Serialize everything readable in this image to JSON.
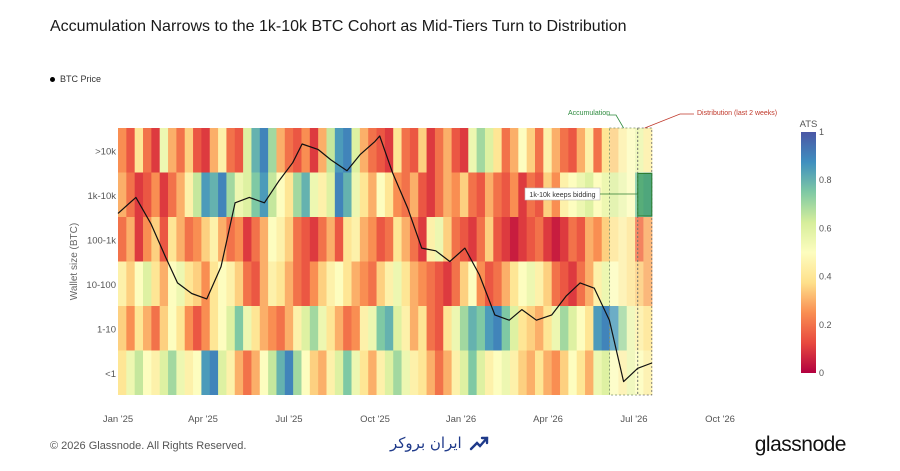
{
  "chart_data": {
    "type": "heatmap",
    "title": "Accumulation Narrows to the 1k-10k BTC Cohort as Mid-Tiers Turn to Distribution",
    "legend": {
      "items": [
        "BTC Price"
      ],
      "placement": "top-left"
    },
    "ylabel": "Wallet size (BTC)",
    "rows": [
      ">10k",
      "1k-10k",
      "100-1k",
      "10-100",
      "1-10",
      "<1"
    ],
    "x_ticks": [
      "Jan '25",
      "Apr '25",
      "Jul '25",
      "Oct '25",
      "Jan '26",
      "Apr '26",
      "Jul '26",
      "Oct '26"
    ],
    "x_start": "2025-01-01",
    "x_end": "2026-07-20",
    "colorbar": {
      "title": "ATS",
      "ticks": [
        "0",
        "0.2",
        "0.4",
        "0.6",
        "0.8",
        "1"
      ],
      "range": [
        0,
        1
      ],
      "colors": [
        "#b2003f",
        "#e8493f",
        "#f98e52",
        "#fee08b",
        "#fdfdbf",
        "#d6ee9b",
        "#7fc9a4",
        "#3f8fbf",
        "#4a56a5"
      ]
    },
    "ats": {
      ">10k": [
        0.25,
        0.15,
        0.4,
        0.2,
        0.1,
        0.55,
        0.3,
        0.2,
        0.35,
        0.15,
        0.1,
        0.3,
        0.45,
        0.2,
        0.15,
        0.6,
        0.8,
        0.9,
        0.7,
        0.3,
        0.2,
        0.15,
        0.25,
        0.1,
        0.3,
        0.65,
        0.85,
        0.9,
        0.6,
        0.3,
        0.2,
        0.15,
        0.1,
        0.4,
        0.2,
        0.15,
        0.35,
        0.1,
        0.2,
        0.3,
        0.15,
        0.1,
        0.55,
        0.7,
        0.6,
        0.4,
        0.2,
        0.3,
        0.5,
        0.35,
        0.2,
        0.45,
        0.3,
        0.2,
        0.15,
        0.3,
        0.45,
        0.2,
        0.4,
        0.35,
        0.45,
        0.5,
        0.55,
        0.45
      ],
      "1k-10k": [
        0.3,
        0.2,
        0.1,
        0.15,
        0.25,
        0.1,
        0.2,
        0.3,
        0.45,
        0.65,
        0.85,
        0.8,
        0.9,
        0.7,
        0.55,
        0.6,
        0.75,
        0.85,
        0.65,
        0.5,
        0.4,
        0.7,
        0.8,
        0.55,
        0.45,
        0.6,
        0.9,
        0.8,
        0.55,
        0.4,
        0.3,
        0.5,
        0.4,
        0.25,
        0.2,
        0.3,
        0.15,
        0.1,
        0.2,
        0.3,
        0.25,
        0.35,
        0.2,
        0.15,
        0.3,
        0.2,
        0.15,
        0.25,
        0.1,
        0.2,
        0.15,
        0.35,
        0.25,
        0.45,
        0.5,
        0.55,
        0.6,
        0.5,
        0.55,
        0.6,
        0.55,
        0.5,
        0.75,
        0.8
      ],
      "100-1k": [
        0.2,
        0.3,
        0.1,
        0.25,
        0.35,
        0.15,
        0.4,
        0.3,
        0.2,
        0.25,
        0.35,
        0.45,
        0.3,
        0.2,
        0.25,
        0.1,
        0.2,
        0.3,
        0.5,
        0.45,
        0.35,
        0.2,
        0.15,
        0.1,
        0.2,
        0.3,
        0.15,
        0.4,
        0.45,
        0.3,
        0.25,
        0.15,
        0.2,
        0.4,
        0.3,
        0.2,
        0.1,
        0.45,
        0.55,
        0.35,
        0.2,
        0.15,
        0.1,
        0.2,
        0.35,
        0.15,
        0.1,
        0.05,
        0.1,
        0.15,
        0.2,
        0.1,
        0.05,
        0.1,
        0.2,
        0.15,
        0.3,
        0.25,
        0.35,
        0.4,
        0.45,
        0.4,
        0.2,
        0.3
      ],
      "10-100": [
        0.45,
        0.35,
        0.5,
        0.6,
        0.4,
        0.3,
        0.5,
        0.55,
        0.4,
        0.35,
        0.25,
        0.4,
        0.5,
        0.45,
        0.35,
        0.2,
        0.15,
        0.3,
        0.45,
        0.4,
        0.3,
        0.2,
        0.15,
        0.25,
        0.35,
        0.45,
        0.5,
        0.4,
        0.3,
        0.25,
        0.2,
        0.35,
        0.45,
        0.55,
        0.4,
        0.3,
        0.25,
        0.2,
        0.15,
        0.1,
        0.2,
        0.35,
        0.5,
        0.25,
        0.15,
        0.2,
        0.3,
        0.4,
        0.5,
        0.55,
        0.45,
        0.35,
        0.2,
        0.15,
        0.1,
        0.2,
        0.3,
        0.45,
        0.55,
        0.5,
        0.45,
        0.4,
        0.35,
        0.3
      ],
      "1-10": [
        0.35,
        0.25,
        0.4,
        0.3,
        0.2,
        0.35,
        0.5,
        0.4,
        0.25,
        0.15,
        0.25,
        0.4,
        0.5,
        0.6,
        0.75,
        0.55,
        0.4,
        0.3,
        0.25,
        0.2,
        0.3,
        0.45,
        0.6,
        0.7,
        0.55,
        0.4,
        0.3,
        0.2,
        0.25,
        0.45,
        0.55,
        0.75,
        0.8,
        0.6,
        0.45,
        0.3,
        0.4,
        0.2,
        0.15,
        0.4,
        0.55,
        0.7,
        0.8,
        0.75,
        0.85,
        0.9,
        0.75,
        0.6,
        0.4,
        0.35,
        0.3,
        0.4,
        0.55,
        0.7,
        0.6,
        0.5,
        0.4,
        0.85,
        0.9,
        0.85,
        0.7,
        0.55,
        0.45,
        0.4
      ],
      "<1": [
        0.4,
        0.55,
        0.65,
        0.5,
        0.45,
        0.6,
        0.7,
        0.55,
        0.45,
        0.5,
        0.85,
        0.9,
        0.6,
        0.45,
        0.3,
        0.2,
        0.3,
        0.5,
        0.65,
        0.8,
        0.9,
        0.7,
        0.5,
        0.35,
        0.3,
        0.45,
        0.6,
        0.75,
        0.55,
        0.4,
        0.3,
        0.45,
        0.6,
        0.7,
        0.55,
        0.45,
        0.4,
        0.3,
        0.2,
        0.3,
        0.45,
        0.6,
        0.75,
        0.6,
        0.45,
        0.5,
        0.55,
        0.45,
        0.35,
        0.3,
        0.4,
        0.3,
        0.25,
        0.35,
        0.5,
        0.4,
        0.3,
        0.55,
        0.6,
        0.5,
        0.45,
        0.55,
        0.5,
        0.45
      ]
    },
    "btc_price": {
      "name": "BTC Price",
      "x": [
        "2025-01-01",
        "2025-01-20",
        "2025-02-05",
        "2025-02-20",
        "2025-03-05",
        "2025-03-20",
        "2025-04-05",
        "2025-04-20",
        "2025-05-05",
        "2025-05-20",
        "2025-06-05",
        "2025-06-20",
        "2025-07-05",
        "2025-07-15",
        "2025-08-01",
        "2025-08-15",
        "2025-09-01",
        "2025-09-15",
        "2025-10-01",
        "2025-10-06",
        "2025-10-20",
        "2025-11-05",
        "2025-11-20",
        "2025-12-05",
        "2025-12-20",
        "2026-01-05",
        "2026-01-20",
        "2026-02-05",
        "2026-02-20",
        "2026-03-05",
        "2026-03-20",
        "2026-04-05",
        "2026-04-20",
        "2026-05-05",
        "2026-05-20",
        "2026-06-05",
        "2026-06-20",
        "2026-07-05",
        "2026-07-20"
      ],
      "y": [
        0.68,
        0.74,
        0.64,
        0.52,
        0.42,
        0.38,
        0.36,
        0.48,
        0.72,
        0.74,
        0.72,
        0.8,
        0.87,
        0.94,
        0.92,
        0.88,
        0.84,
        0.9,
        0.95,
        0.97,
        0.83,
        0.7,
        0.55,
        0.54,
        0.5,
        0.55,
        0.45,
        0.3,
        0.28,
        0.32,
        0.28,
        0.3,
        0.37,
        0.42,
        0.4,
        0.28,
        0.05,
        0.1,
        0.12
      ]
    },
    "annotations": [
      {
        "text": "Accumulation",
        "color": "#2e8b3f"
      },
      {
        "text": "Distribution (last 2 weeks)",
        "color": "#c0392b"
      },
      {
        "text": "1k-10k keeps bidding",
        "color": "#333333"
      }
    ],
    "grid": false
  },
  "footer": {
    "copyright": "© 2026 Glassnode. All Rights Reserved.",
    "watermark": "ایران بروکر",
    "logo": "glassnode"
  }
}
